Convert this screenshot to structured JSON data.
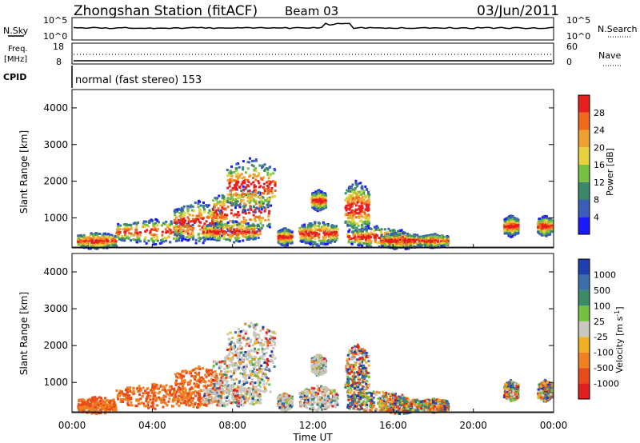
{
  "header": {
    "station": "Zhongshan Station (fitACF)",
    "beam": "Beam 03",
    "date": "03/Jun/2011"
  },
  "panels": {
    "nsky": {
      "label": "N.Sky",
      "right_label": "N.Search",
      "left_ticks": [
        "10^5",
        "10^0"
      ],
      "right_ticks": [
        "10^5",
        "10^0"
      ]
    },
    "freq": {
      "label_top": "Freq.",
      "label_bottom": "[MHz]",
      "right_label": "Nave",
      "left_ticks": [
        "18",
        "8"
      ],
      "right_ticks": [
        "60",
        "0"
      ]
    },
    "cpid": {
      "label": "CPID",
      "text": "normal (fast stereo) 153"
    }
  },
  "chart_data": [
    {
      "type": "heatmap",
      "title": "",
      "ylabel": "Slant Range [km]",
      "xlabel": "",
      "ylim": [
        180,
        4500
      ],
      "yticks": [
        "1000",
        "2000",
        "3000",
        "4000"
      ],
      "colorbar": {
        "label": "Power [dB]",
        "ticks": [
          "4",
          "8",
          "12",
          "16",
          "20",
          "24",
          "28"
        ],
        "colors": [
          "#1a1aff",
          "#3b5fb8",
          "#3a8a6a",
          "#76c043",
          "#e6d23c",
          "#f0a030",
          "#f06a1c",
          "#e61e1e"
        ]
      }
    },
    {
      "type": "heatmap",
      "title": "",
      "ylabel": "Slant Range [km]",
      "xlabel": "Time UT",
      "xticks": [
        "00:00",
        "04:00",
        "08:00",
        "12:00",
        "16:00",
        "20:00",
        "00:00"
      ],
      "ylim": [
        180,
        4500
      ],
      "yticks": [
        "1000",
        "2000",
        "3000",
        "4000"
      ],
      "colorbar": {
        "label": "Velocity [m s^-1]",
        "ticks": [
          "1000",
          "500",
          "100",
          "25",
          "-25",
          "-100",
          "-500",
          "-1000"
        ],
        "colors": [
          "#1f3fae",
          "#3a6fa8",
          "#3b8a68",
          "#74c040",
          "#c8c8c0",
          "#f0b020",
          "#f08020",
          "#e84a1a",
          "#e01e1e"
        ]
      }
    }
  ]
}
